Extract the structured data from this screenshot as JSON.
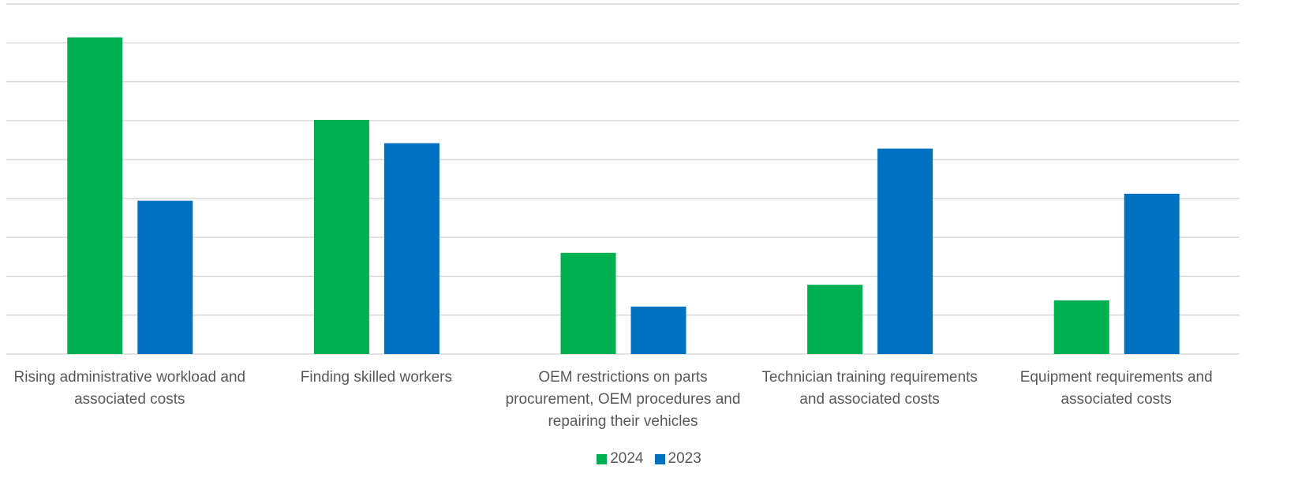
{
  "chart_data": {
    "type": "bar",
    "categories": [
      "Rising administrative workload and associated costs",
      "Finding skilled workers",
      "OEM restrictions on parts procurement, OEM procedures and repairing their vehicles",
      "Technician training requirements and associated costs",
      "Equipment requirements and associated costs"
    ],
    "series": [
      {
        "name": "2024",
        "color": "#00b050",
        "values": [
          40.7,
          30.1,
          13.0,
          8.9,
          6.9
        ]
      },
      {
        "name": "2023",
        "color": "#0070c0",
        "values": [
          19.7,
          27.1,
          6.1,
          26.4,
          20.6
        ]
      }
    ],
    "ylim": [
      0,
      45
    ],
    "yticks": [
      0,
      5,
      10,
      15,
      20,
      25,
      30,
      35,
      40,
      45
    ],
    "grid": true,
    "legend": "bottom"
  }
}
